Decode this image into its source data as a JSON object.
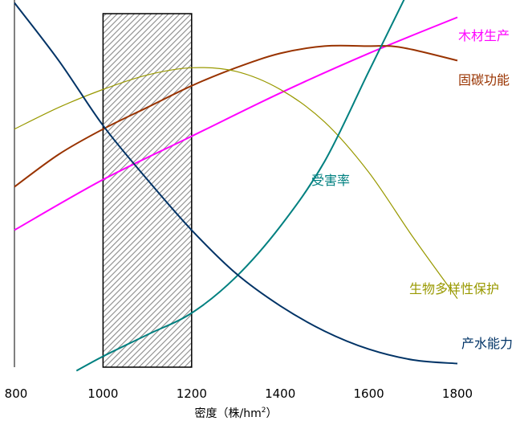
{
  "chart_data": {
    "type": "line",
    "title": "",
    "xlabel": "密度（株/hm",
    "xlabel_sup": "2",
    "xlabel_close": "）",
    "ylabel": "",
    "xlim": [
      800,
      1800
    ],
    "ylim": [
      0,
      1
    ],
    "x_ticks": [
      "800",
      "1000",
      "1200",
      "1400",
      "1600",
      "1800"
    ],
    "grid": false,
    "y_axis_ticks": false,
    "highlight_band": {
      "x_from": 1000,
      "x_to": 1200,
      "pattern": "diagonal hatch"
    },
    "series": [
      {
        "name": "木材生产",
        "color": "#ff00ff",
        "x": [
          800,
          1000,
          1200,
          1400,
          1600,
          1800
        ],
        "y": [
          0.38,
          0.52,
          0.64,
          0.76,
          0.87,
          0.97
        ]
      },
      {
        "name": "固碳功能",
        "color": "#993300",
        "x": [
          800,
          900,
          1000,
          1100,
          1200,
          1300,
          1400,
          1500,
          1600,
          1650,
          1700,
          1800
        ],
        "y": [
          0.5,
          0.59,
          0.66,
          0.72,
          0.78,
          0.83,
          0.87,
          0.89,
          0.89,
          0.89,
          0.88,
          0.85
        ]
      },
      {
        "name": "生物多样性保护",
        "color": "#999900",
        "x": [
          800,
          900,
          1000,
          1100,
          1200,
          1300,
          1400,
          1500,
          1600,
          1700,
          1800
        ],
        "y": [
          0.66,
          0.72,
          0.77,
          0.81,
          0.83,
          0.82,
          0.77,
          0.68,
          0.54,
          0.36,
          0.19
        ]
      },
      {
        "name": "受害率",
        "color": "#008080",
        "x": [
          940,
          1000,
          1100,
          1200,
          1300,
          1400,
          1500,
          1600,
          1680
        ],
        "y": [
          -0.01,
          0.03,
          0.09,
          0.15,
          0.25,
          0.39,
          0.57,
          0.82,
          1.02
        ]
      },
      {
        "name": "产水能力",
        "color": "#003366",
        "x": [
          800,
          900,
          1000,
          1100,
          1200,
          1300,
          1400,
          1500,
          1600,
          1700,
          1800
        ],
        "y": [
          1.01,
          0.85,
          0.67,
          0.52,
          0.38,
          0.26,
          0.17,
          0.1,
          0.05,
          0.02,
          0.01
        ]
      }
    ]
  }
}
